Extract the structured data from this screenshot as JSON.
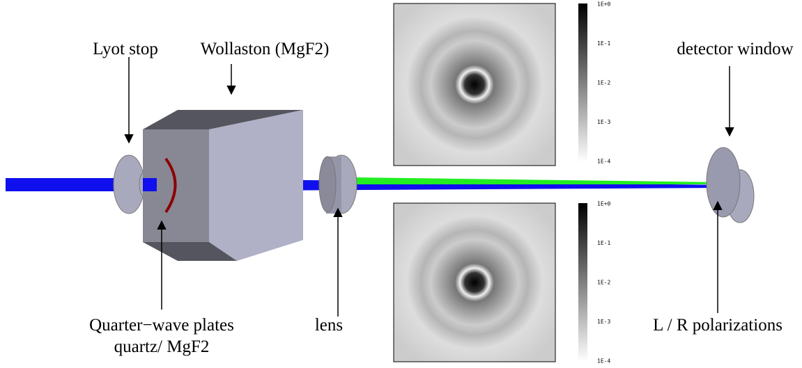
{
  "labels": {
    "lyot_stop": "Lyot stop",
    "wollaston": "Wollaston (MgF2)",
    "detector_window": "detector window",
    "quarter_wave": "Quarter−wave plates",
    "quarter_wave_material": "quartz/ MgF2",
    "lens": "lens",
    "polarizations": "L / R polarizations"
  },
  "colorbars": [
    {
      "ticks": [
        "1E+0",
        "1E-1",
        "1E-2",
        "1E-3",
        "1E-4"
      ]
    },
    {
      "ticks": [
        "1E+0",
        "1E-1",
        "1E-2",
        "1E-3",
        "1E-4"
      ]
    }
  ]
}
